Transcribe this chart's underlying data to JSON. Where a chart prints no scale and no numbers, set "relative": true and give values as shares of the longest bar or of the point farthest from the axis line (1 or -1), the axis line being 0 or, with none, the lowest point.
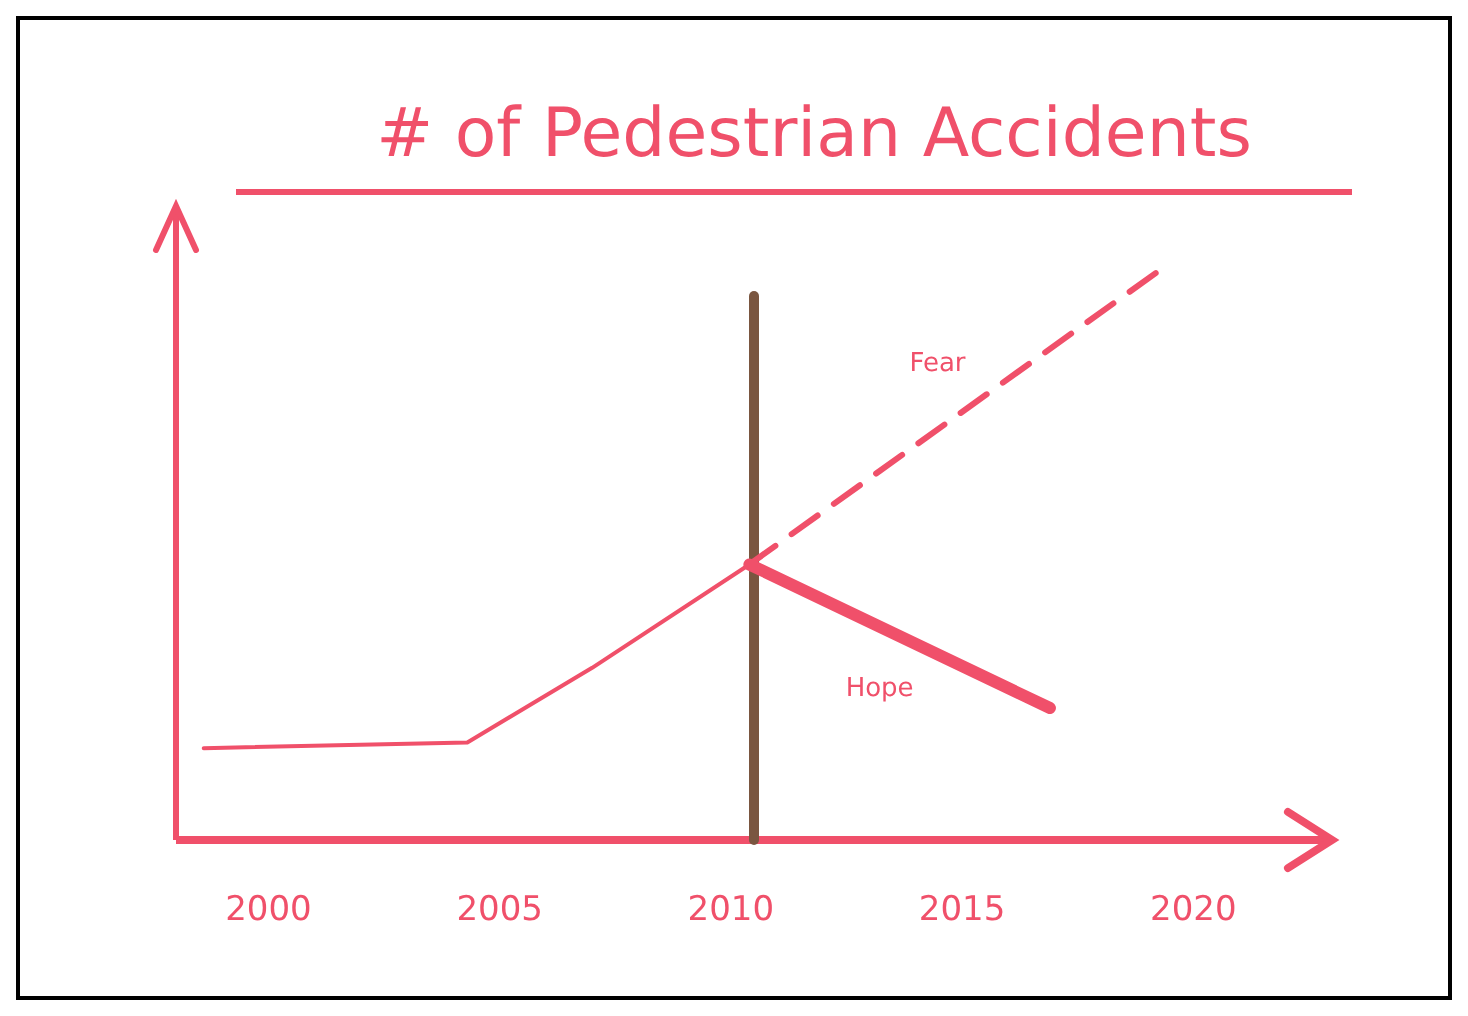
{
  "chart_data": {
    "type": "line",
    "title": "# of Pedestrian Accidents",
    "relative": true,
    "xlim": [
      1998,
      2023
    ],
    "xticks": [
      2000,
      2005,
      2010,
      2015,
      2020
    ],
    "tick_labels": "x",
    "grid": false,
    "marker": "none",
    "series": [
      {
        "color": "#f0506a",
        "x": [
          1998.6,
          2004.3,
          2007,
          2010.4
        ],
        "values": [
          0.16,
          0.17,
          0.3,
          0.48
        ],
        "line_style": "solid"
      },
      {
        "name": "Fear",
        "color": "#f0506a",
        "x": [
          2010.4,
          2019.4
        ],
        "values": [
          0.48,
          1
        ],
        "line_style": "dashed"
      },
      {
        "name": "Hope",
        "color": "#f0506a",
        "x": [
          2010.4,
          2016.9
        ],
        "values": [
          0.48,
          0.23
        ],
        "line_style": "solid"
      }
    ],
    "ref_lines": [
      {
        "axis": "x",
        "value": 2010.5,
        "color": "#7a5640"
      }
    ]
  }
}
